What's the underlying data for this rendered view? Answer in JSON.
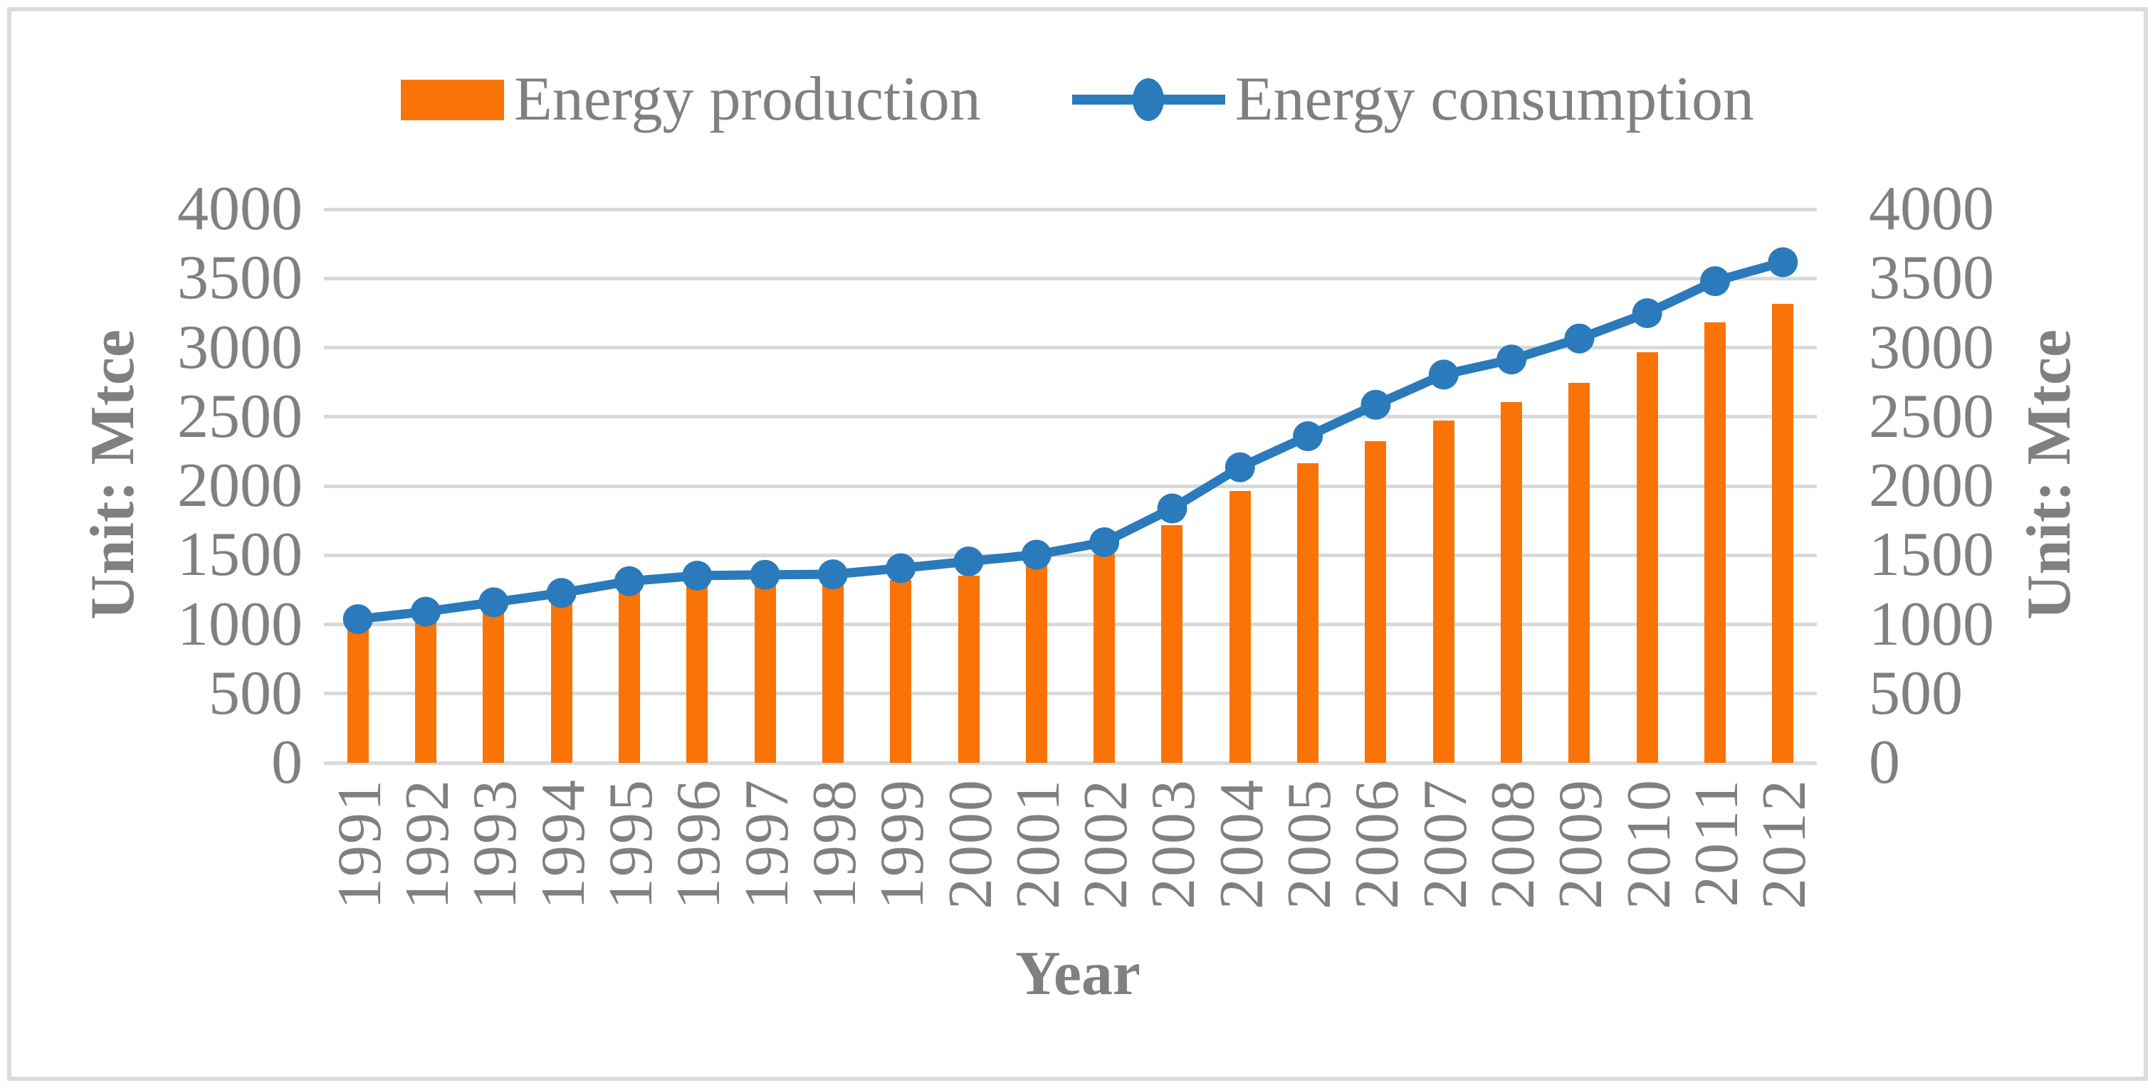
{
  "legend": {
    "production_label": "Energy production",
    "consumption_label": "Energy consumption"
  },
  "axes": {
    "left_unit": "Unit: Mtce",
    "right_unit": "Unit: Mtce",
    "x_title": "Year"
  },
  "colors": {
    "production_orange": "#fa7306",
    "consumption_blue": "#2a7abc",
    "gridline_gray": "#d9d9d9",
    "text_gray": "#808080",
    "frame_gray": "#dcdcdc"
  },
  "chart_data": {
    "type": "bar",
    "title": "",
    "xlabel": "Year",
    "ylabel": "Unit: Mtce",
    "ylim": [
      0,
      4000
    ],
    "y_ticks": [
      0,
      500,
      1000,
      1500,
      2000,
      2500,
      3000,
      3500,
      4000
    ],
    "grid": true,
    "legend_position": "top",
    "categories": [
      "1991",
      "1992",
      "1993",
      "1994",
      "1995",
      "1996",
      "1997",
      "1998",
      "1999",
      "2000",
      "2001",
      "2002",
      "2003",
      "2004",
      "2005",
      "2006",
      "2007",
      "2008",
      "2009",
      "2010",
      "2011",
      "2012"
    ],
    "series": [
      {
        "name": "Energy production",
        "type": "bar",
        "values": [
          1048,
          1073,
          1111,
          1187,
          1290,
          1330,
          1334,
          1298,
          1319,
          1350,
          1439,
          1507,
          1719,
          1966,
          2162,
          2322,
          2473,
          2606,
          2746,
          2969,
          3180,
          3318
        ]
      },
      {
        "name": "Energy consumption",
        "type": "line",
        "values": [
          1038,
          1092,
          1160,
          1227,
          1312,
          1352,
          1359,
          1362,
          1406,
          1455,
          1504,
          1594,
          1838,
          2135,
          2360,
          2587,
          2805,
          2914,
          3066,
          3249,
          3480,
          3617
        ]
      }
    ]
  }
}
